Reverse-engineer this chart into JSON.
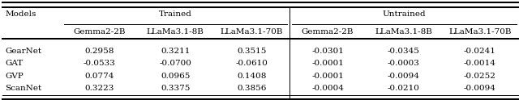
{
  "models": [
    "GearNet",
    "GAT",
    "GVP",
    "ScanNet"
  ],
  "col_headers": [
    "Gemma2-2B",
    "LLaMa3.1-8B",
    "LLaMa3.1-70B",
    "Gemma2-2B",
    "LLaMa3.1-8B",
    "LLaMa3.1-70B"
  ],
  "group_labels": [
    "Trained",
    "Untrained"
  ],
  "data": {
    "GearNet": [
      "0.2958",
      "0.3211",
      "0.3515",
      "-0.0301",
      "-0.0345",
      "-0.0241"
    ],
    "GAT": [
      "-0.0533",
      "-0.0700",
      "-0.0610",
      "-0.0001",
      "-0.0003",
      "-0.0014"
    ],
    "GVP": [
      "0.0774",
      "0.0965",
      "0.1408",
      "-0.0001",
      "-0.0094",
      "-0.0252"
    ],
    "ScanNet": [
      "0.3223",
      "0.3375",
      "0.3856",
      "-0.0004",
      "-0.0210",
      "-0.0094"
    ]
  },
  "bg_color": "#ffffff",
  "font_size": 7.5,
  "font_family": "serif"
}
